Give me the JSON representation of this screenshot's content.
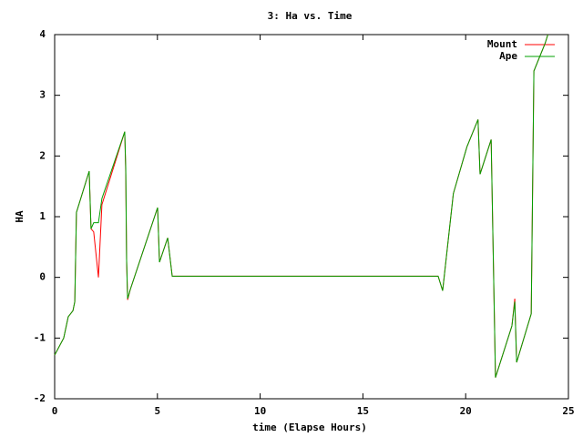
{
  "chart_data": {
    "type": "line",
    "title": "3: Ha vs. Time",
    "xlabel": "time (Elapse Hours)",
    "ylabel": "HA",
    "x": [
      0,
      0.44,
      0.66,
      0.89,
      0.98,
      1.06,
      1.68,
      1.77,
      1.9,
      2.13,
      2.3,
      3.41,
      3.46,
      3.5,
      3.55,
      3.68,
      5.01,
      5.1,
      5.5,
      5.72,
      18.66,
      18.88,
      19.4,
      20.06,
      20.6,
      20.7,
      21.24,
      21.45,
      22.25,
      22.39,
      22.48,
      23.19,
      23.32,
      23.86,
      24.0
    ],
    "series": [
      {
        "name": "Mount",
        "color": "#ff0000",
        "values": [
          -1.28,
          -1.0,
          -0.65,
          -0.55,
          -0.4,
          1.07,
          1.75,
          0.8,
          0.75,
          0.0,
          1.2,
          2.4,
          1.7,
          0.3,
          -0.37,
          -0.2,
          1.15,
          0.25,
          0.65,
          0.02,
          0.02,
          -0.22,
          1.38,
          2.15,
          2.6,
          1.7,
          2.27,
          -1.65,
          -0.8,
          -0.35,
          -1.4,
          -0.6,
          3.4,
          3.85,
          4.0
        ]
      },
      {
        "name": "Ape",
        "color": "#00a000",
        "values": [
          -1.28,
          -1.0,
          -0.65,
          -0.55,
          -0.4,
          1.07,
          1.75,
          0.8,
          0.9,
          0.9,
          1.3,
          2.4,
          1.8,
          0.3,
          -0.35,
          -0.2,
          1.15,
          0.25,
          0.65,
          0.02,
          0.02,
          -0.22,
          1.38,
          2.15,
          2.6,
          1.7,
          2.27,
          -1.65,
          -0.8,
          -0.4,
          -1.4,
          -0.6,
          3.4,
          3.85,
          4.0
        ]
      }
    ],
    "xlim": [
      0,
      25
    ],
    "xticks": [
      0,
      5,
      10,
      15,
      20,
      25
    ],
    "ylim": [
      -2,
      4
    ],
    "yticks": [
      -2,
      -1,
      0,
      1,
      2,
      3,
      4
    ],
    "legend": "upper-right"
  }
}
